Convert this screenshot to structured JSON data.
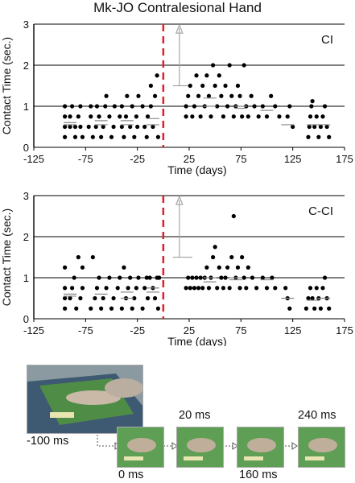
{
  "figure_title": "Mk-JO Contralesional Hand",
  "chart_data": [
    {
      "type": "scatter",
      "panel_label": "CI",
      "ylabel": "Contact Time (sec.)",
      "xlabel": "Time (days)",
      "xlim": [
        -125,
        175
      ],
      "ylim": [
        0,
        3
      ],
      "xticks": [
        -125,
        -75,
        -25,
        25,
        75,
        125,
        175
      ],
      "yticks": [
        0,
        1,
        2,
        3
      ],
      "grid": "horizontal",
      "surgery_day": 0,
      "colors": {
        "points": "#000000",
        "surgery_line": "#e0202b",
        "arrow": "#a8a8a8"
      },
      "points": [
        [
          -95,
          0.25
        ],
        [
          -95,
          0.5
        ],
        [
          -95,
          0.75
        ],
        [
          -95,
          1.0
        ],
        [
          -90,
          0.5
        ],
        [
          -90,
          0.75
        ],
        [
          -88,
          1.0
        ],
        [
          -85,
          0.5
        ],
        [
          -85,
          0.25
        ],
        [
          -82,
          0.75
        ],
        [
          -80,
          1.0
        ],
        [
          -80,
          0.5
        ],
        [
          -78,
          0.25
        ],
        [
          -72,
          0.5
        ],
        [
          -70,
          0.75
        ],
        [
          -70,
          1.0
        ],
        [
          -68,
          0.25
        ],
        [
          -65,
          0.5
        ],
        [
          -64,
          1.0
        ],
        [
          -62,
          0.75
        ],
        [
          -60,
          0.25
        ],
        [
          -58,
          0.5
        ],
        [
          -56,
          1.0
        ],
        [
          -55,
          1.25
        ],
        [
          -52,
          0.75
        ],
        [
          -50,
          0.25
        ],
        [
          -48,
          0.5
        ],
        [
          -47,
          1.0
        ],
        [
          -42,
          0.75
        ],
        [
          -40,
          0.5
        ],
        [
          -40,
          1.0
        ],
        [
          -38,
          0.25
        ],
        [
          -36,
          0.75
        ],
        [
          -35,
          1.25
        ],
        [
          -32,
          0.5
        ],
        [
          -30,
          1.0
        ],
        [
          -28,
          0.25
        ],
        [
          -26,
          0.75
        ],
        [
          -25,
          0.5
        ],
        [
          -24,
          1.25
        ],
        [
          -20,
          1.0
        ],
        [
          -18,
          0.5
        ],
        [
          -16,
          0.25
        ],
        [
          -15,
          0.75
        ],
        [
          -12,
          1.5
        ],
        [
          -12,
          1.0
        ],
        [
          -10,
          0.5
        ],
        [
          -8,
          1.25
        ],
        [
          -6,
          1.75
        ],
        [
          -5,
          0.25
        ],
        [
          22,
          0.75
        ],
        [
          22,
          1.0
        ],
        [
          24,
          1.25
        ],
        [
          26,
          1.5
        ],
        [
          28,
          0.75
        ],
        [
          30,
          1.0
        ],
        [
          32,
          1.75
        ],
        [
          34,
          1.25
        ],
        [
          36,
          0.75
        ],
        [
          38,
          1.5
        ],
        [
          40,
          1.0
        ],
        [
          42,
          1.75
        ],
        [
          44,
          1.25
        ],
        [
          46,
          0.75
        ],
        [
          48,
          2.0
        ],
        [
          50,
          1.5
        ],
        [
          52,
          1.0
        ],
        [
          54,
          1.75
        ],
        [
          56,
          1.25
        ],
        [
          58,
          0.75
        ],
        [
          60,
          1.5
        ],
        [
          62,
          1.0
        ],
        [
          64,
          2.0
        ],
        [
          66,
          1.25
        ],
        [
          68,
          0.75
        ],
        [
          70,
          1.0
        ],
        [
          72,
          1.5
        ],
        [
          74,
          1.25
        ],
        [
          76,
          0.75
        ],
        [
          78,
          2.0
        ],
        [
          80,
          1.0
        ],
        [
          82,
          0.75
        ],
        [
          85,
          1.25
        ],
        [
          88,
          1.0
        ],
        [
          92,
          0.75
        ],
        [
          96,
          1.0
        ],
        [
          100,
          0.75
        ],
        [
          104,
          1.25
        ],
        [
          108,
          1.0
        ],
        [
          112,
          0.75
        ],
        [
          120,
          0.75
        ],
        [
          122,
          1.0
        ],
        [
          125,
          0.5
        ],
        [
          140,
          0.25
        ],
        [
          141,
          0.5
        ],
        [
          142,
          0.75
        ],
        [
          143,
          1.0
        ],
        [
          144,
          1.125
        ],
        [
          146,
          0.5
        ],
        [
          148,
          0.75
        ],
        [
          150,
          0.25
        ],
        [
          152,
          0.5
        ],
        [
          154,
          0.75
        ],
        [
          156,
          1.0
        ],
        [
          158,
          0.5
        ],
        [
          160,
          0.25
        ]
      ],
      "mean_markers": [
        [
          -90,
          0.55
        ],
        [
          -90,
          0.6
        ],
        [
          -60,
          0.55
        ],
        [
          -60,
          0.65
        ],
        [
          -35,
          0.55
        ],
        [
          -35,
          0.65
        ],
        [
          -10,
          0.55
        ],
        [
          -10,
          0.7
        ],
        [
          45,
          1.2
        ],
        [
          45,
          1.0
        ],
        [
          75,
          0.95
        ],
        [
          75,
          1.0
        ],
        [
          100,
          0.9
        ],
        [
          120,
          0.55
        ],
        [
          145,
          0.55
        ],
        [
          155,
          0.55
        ]
      ]
    },
    {
      "type": "scatter",
      "panel_label": "C-CI",
      "ylabel": "Contact Time (sec.)",
      "xlabel": "Time (days)",
      "xlim": [
        -125,
        175
      ],
      "ylim": [
        0,
        3
      ],
      "xticks": [
        -125,
        -75,
        -25,
        25,
        75,
        125,
        175
      ],
      "yticks": [
        0,
        1,
        2,
        3
      ],
      "grid": "horizontal",
      "surgery_day": 0,
      "colors": {
        "points": "#000000",
        "surgery_line": "#e0202b",
        "arrow": "#a8a8a8"
      },
      "points": [
        [
          -95,
          0.25
        ],
        [
          -95,
          0.5
        ],
        [
          -95,
          0.75
        ],
        [
          -95,
          1.25
        ],
        [
          -90,
          0.5
        ],
        [
          -88,
          0.75
        ],
        [
          -86,
          1.0
        ],
        [
          -84,
          0.25
        ],
        [
          -82,
          1.5
        ],
        [
          -80,
          0.5
        ],
        [
          -78,
          0.75
        ],
        [
          -78,
          1.25
        ],
        [
          -70,
          0.25
        ],
        [
          -68,
          1.5
        ],
        [
          -66,
          0.5
        ],
        [
          -64,
          0.75
        ],
        [
          -62,
          1.0
        ],
        [
          -60,
          0.25
        ],
        [
          -58,
          0.5
        ],
        [
          -55,
          0.75
        ],
        [
          -52,
          1.0
        ],
        [
          -50,
          0.25
        ],
        [
          -48,
          0.5
        ],
        [
          -44,
          0.75
        ],
        [
          -42,
          1.0
        ],
        [
          -40,
          0.25
        ],
        [
          -38,
          1.25
        ],
        [
          -36,
          0.5
        ],
        [
          -34,
          0.75
        ],
        [
          -32,
          1.0
        ],
        [
          -30,
          0.25
        ],
        [
          -28,
          0.5
        ],
        [
          -26,
          0.75
        ],
        [
          -24,
          1.0
        ],
        [
          -20,
          0.25
        ],
        [
          -18,
          0.75
        ],
        [
          -16,
          1.0
        ],
        [
          -15,
          0.5
        ],
        [
          -13,
          1.0
        ],
        [
          -10,
          0.75
        ],
        [
          -8,
          0.5
        ],
        [
          -6,
          1.0
        ],
        [
          -5,
          0.25
        ],
        [
          -4,
          1.0
        ],
        [
          22,
          0.75
        ],
        [
          24,
          1.0
        ],
        [
          26,
          0.75
        ],
        [
          28,
          1.0
        ],
        [
          30,
          0.75
        ],
        [
          32,
          1.0
        ],
        [
          34,
          0.75
        ],
        [
          36,
          1.0
        ],
        [
          38,
          0.75
        ],
        [
          40,
          1.0
        ],
        [
          42,
          1.25
        ],
        [
          44,
          0.75
        ],
        [
          46,
          1.0
        ],
        [
          48,
          1.5
        ],
        [
          50,
          1.75
        ],
        [
          52,
          0.75
        ],
        [
          54,
          1.25
        ],
        [
          56,
          1.0
        ],
        [
          58,
          0.75
        ],
        [
          60,
          1.0
        ],
        [
          62,
          1.25
        ],
        [
          64,
          0.75
        ],
        [
          66,
          1.5
        ],
        [
          68,
          2.5
        ],
        [
          70,
          1.0
        ],
        [
          72,
          1.25
        ],
        [
          74,
          0.75
        ],
        [
          76,
          1.5
        ],
        [
          78,
          1.0
        ],
        [
          80,
          0.75
        ],
        [
          82,
          1.25
        ],
        [
          86,
          1.0
        ],
        [
          90,
          0.75
        ],
        [
          96,
          1.0
        ],
        [
          100,
          0.75
        ],
        [
          105,
          1.0
        ],
        [
          108,
          0.75
        ],
        [
          118,
          0.75
        ],
        [
          120,
          0.5
        ],
        [
          122,
          0.25
        ],
        [
          138,
          0.25
        ],
        [
          140,
          0.5
        ],
        [
          142,
          0.75
        ],
        [
          144,
          0.5
        ],
        [
          146,
          0.25
        ],
        [
          148,
          0.75
        ],
        [
          150,
          0.5
        ],
        [
          152,
          0.25
        ],
        [
          154,
          0.75
        ],
        [
          156,
          1.0
        ],
        [
          158,
          0.5
        ],
        [
          160,
          0.25
        ]
      ],
      "mean_markers": [
        [
          -90,
          0.55
        ],
        [
          -90,
          0.6
        ],
        [
          -60,
          0.6
        ],
        [
          -35,
          0.5
        ],
        [
          -35,
          0.65
        ],
        [
          -10,
          0.65
        ],
        [
          -10,
          0.75
        ],
        [
          45,
          0.9
        ],
        [
          45,
          1.0
        ],
        [
          70,
          0.95
        ],
        [
          70,
          1.0
        ],
        [
          100,
          0.95
        ],
        [
          120,
          0.5
        ],
        [
          145,
          0.45
        ],
        [
          155,
          0.5
        ]
      ]
    }
  ],
  "frames": {
    "main_caption": "-100 ms",
    "frame_labels": [
      "0 ms",
      "20 ms",
      "160 ms",
      "240 ms"
    ]
  }
}
